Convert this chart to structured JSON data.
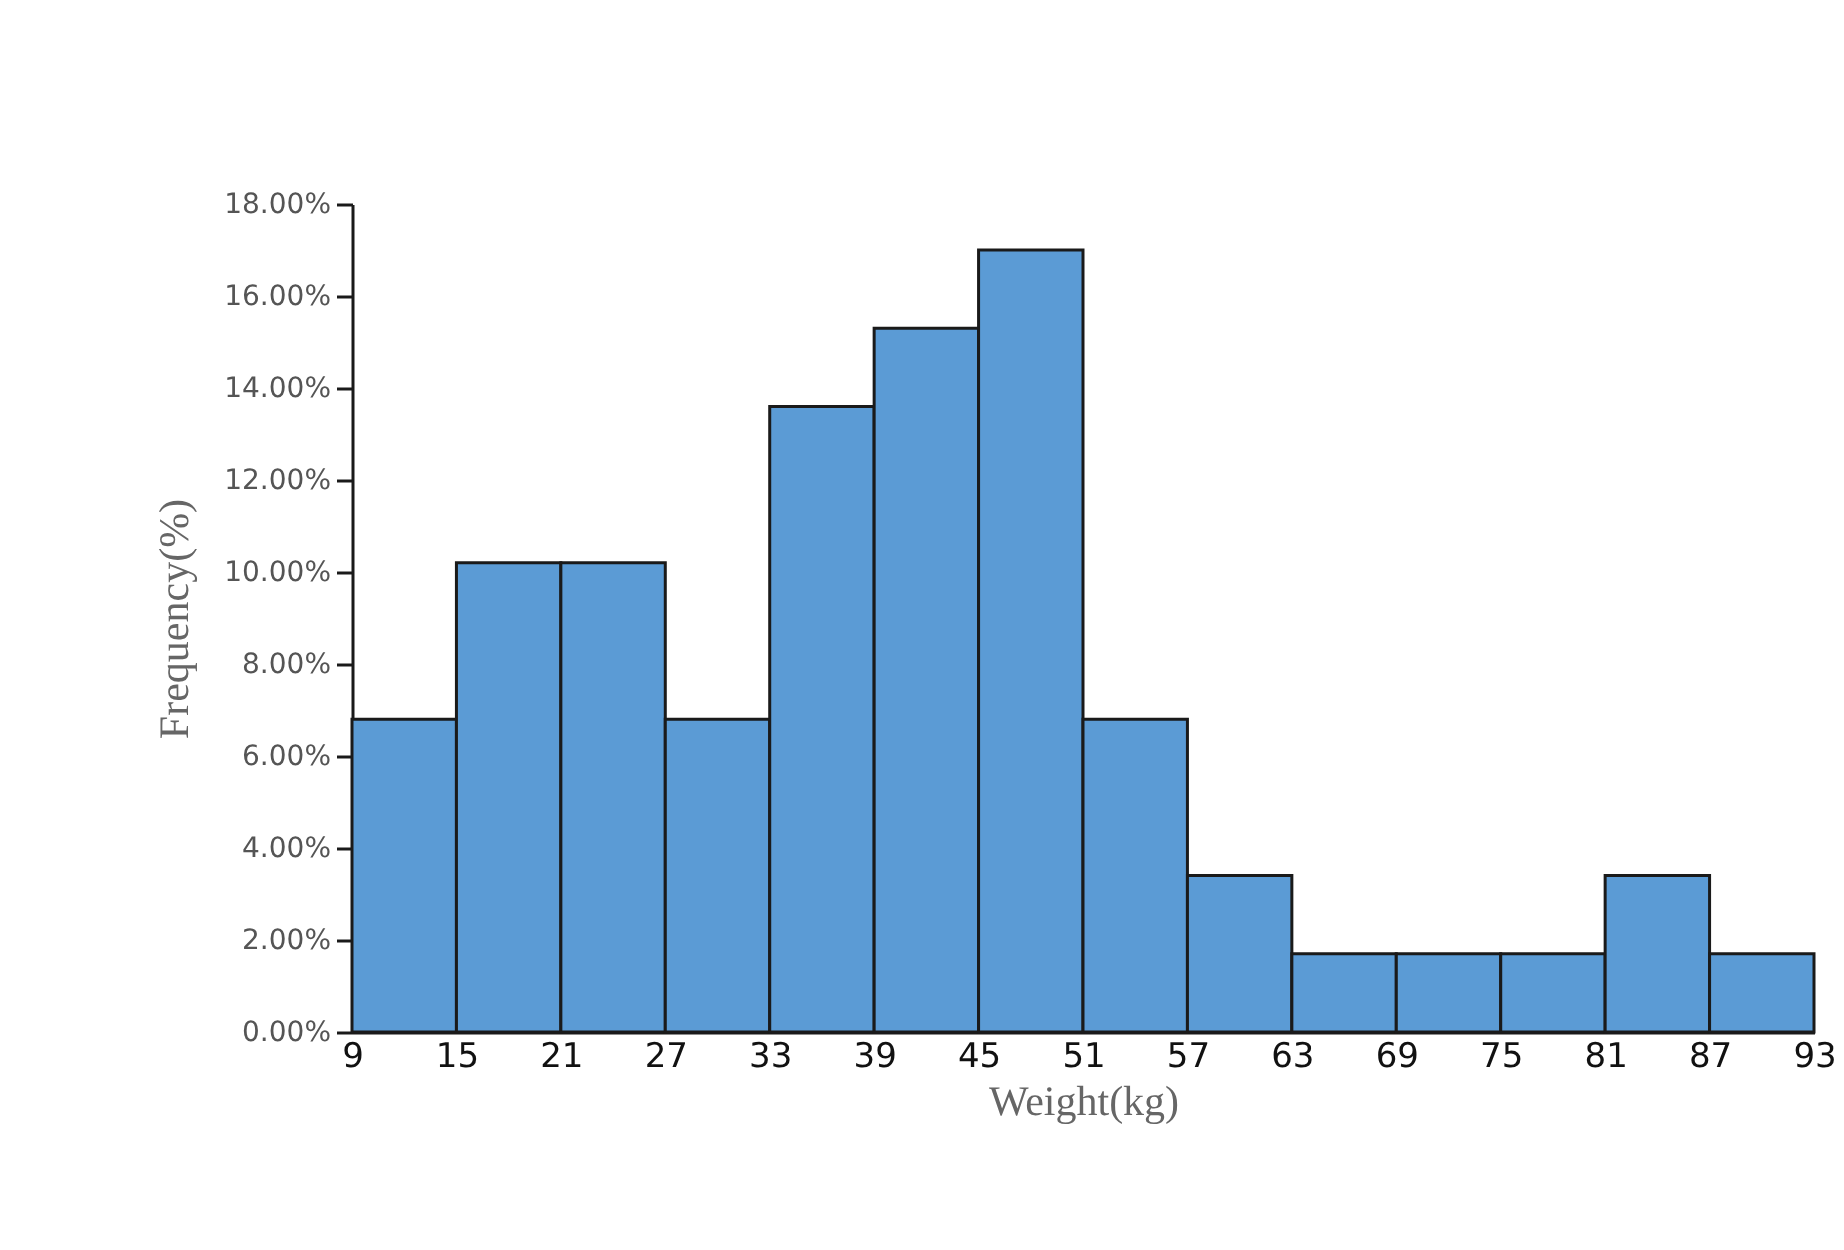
{
  "chart_data": {
    "type": "histogram",
    "xlabel": "Weight(kg)",
    "ylabel": "Frequency(%)",
    "bins": [
      9,
      15,
      21,
      27,
      33,
      39,
      45,
      51,
      57,
      63,
      69,
      75,
      81,
      87,
      93
    ],
    "values": [
      6.8,
      10.2,
      10.2,
      6.8,
      13.6,
      15.3,
      17.0,
      6.8,
      3.4,
      1.7,
      1.7,
      1.7,
      3.4,
      1.7
    ],
    "color": "#5b9bd5",
    "xlim": [
      9,
      93
    ],
    "xticks": [
      9,
      15,
      21,
      27,
      33,
      39,
      45,
      51,
      57,
      63,
      69,
      75,
      81,
      87,
      93
    ],
    "ylim": [
      0,
      18
    ],
    "yticks": [
      {
        "value": 0,
        "label": "0.00%"
      },
      {
        "value": 2,
        "label": "2.00%"
      },
      {
        "value": 4,
        "label": "4.00%"
      },
      {
        "value": 6,
        "label": "6.00%"
      },
      {
        "value": 8,
        "label": "8.00%"
      },
      {
        "value": 10,
        "label": "10.00%"
      },
      {
        "value": 12,
        "label": "12.00%"
      },
      {
        "value": 14,
        "label": "14.00%"
      },
      {
        "value": 16,
        "label": "16.00%"
      },
      {
        "value": 18,
        "label": "18.00%"
      }
    ],
    "grid": false
  }
}
